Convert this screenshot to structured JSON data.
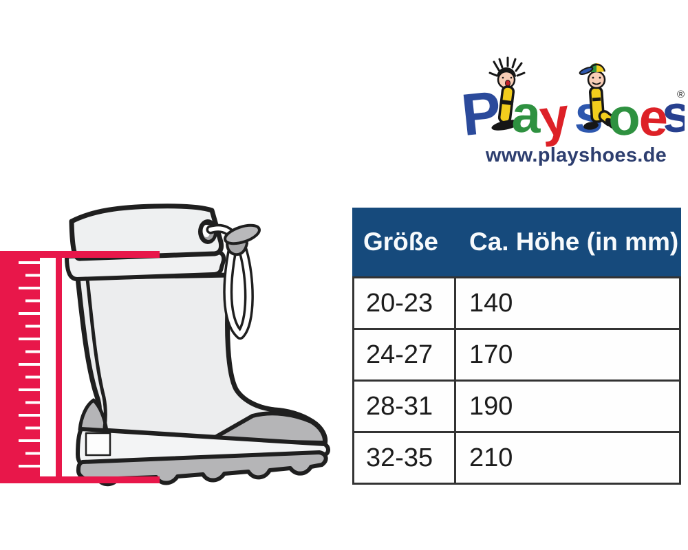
{
  "page": {
    "background_color": "#ffffff"
  },
  "logo": {
    "brand": "Playshoes",
    "letters": [
      {
        "char": "P",
        "color": "#2b4a9b"
      },
      {
        "char": "a",
        "color": "#2e9140"
      },
      {
        "char": "y",
        "color": "#dd2127"
      },
      {
        "char": "s",
        "color": "#2d57ae"
      },
      {
        "char": "o",
        "color": "#2e9140"
      },
      {
        "char": "e",
        "color": "#dd2127"
      },
      {
        "char": "s",
        "color": "#27408f"
      }
    ],
    "figure_icons": [
      "girl-with-pigtails",
      "boy-with-cap"
    ],
    "registered_mark": "®",
    "website": "www.playshoes.de"
  },
  "size_table": {
    "columns": [
      "Größe",
      "Ca. Höhe (in mm)"
    ],
    "rows": [
      [
        "20-23",
        "140"
      ],
      [
        "24-27",
        "170"
      ],
      [
        "28-31",
        "190"
      ],
      [
        "32-35",
        "210"
      ]
    ]
  },
  "diagram": {
    "subject": "rain-boot-height-measurement",
    "ruler_color": "#e8174a"
  },
  "colors": {
    "table_header_bg": "#164a7c",
    "table_header_text": "#f7fafc",
    "table_border": "#333333",
    "website_text": "#2d3e6f",
    "boot_fill": "#ecedee",
    "boot_gray": "#b5b5b7",
    "outline": "#1f1f1f"
  }
}
